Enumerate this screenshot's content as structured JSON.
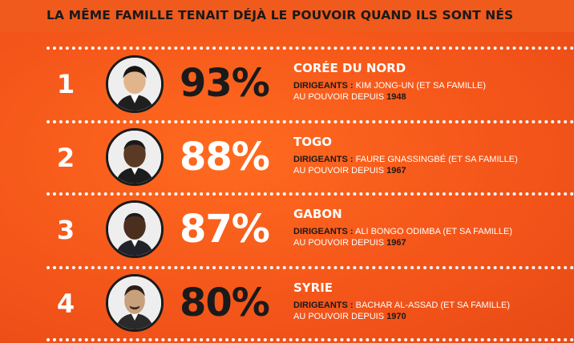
{
  "heading": "LA MÊME FAMILLE TENAIT DÉJÀ LE POUVOIR QUAND ILS SONT NÉS",
  "leaders_label": "DIRIGEANTS :",
  "since_label": "AU POUVOIR DEPUIS",
  "rows": [
    {
      "rank": "1",
      "percent": "93%",
      "country": "CORÉE DU NORD",
      "leaders": "KIM JONG-UN (ET SA FAMILLE)",
      "year": "1948"
    },
    {
      "rank": "2",
      "percent": "88%",
      "country": "TOGO",
      "leaders": "FAURE GNASSINGBÉ (ET SA FAMILLE)",
      "year": "1967"
    },
    {
      "rank": "3",
      "percent": "87%",
      "country": "GABON",
      "leaders": "ALI BONGO ODIMBA (ET SA FAMILLE)",
      "year": "1967"
    },
    {
      "rank": "4",
      "percent": "80%",
      "country": "SYRIE",
      "leaders": "BACHAR AL-ASSAD (ET SA FAMILLE)",
      "year": "1970"
    }
  ],
  "colors": {
    "background": "#f4561a",
    "dark": "#1a1a1a",
    "light": "#ffffff"
  }
}
